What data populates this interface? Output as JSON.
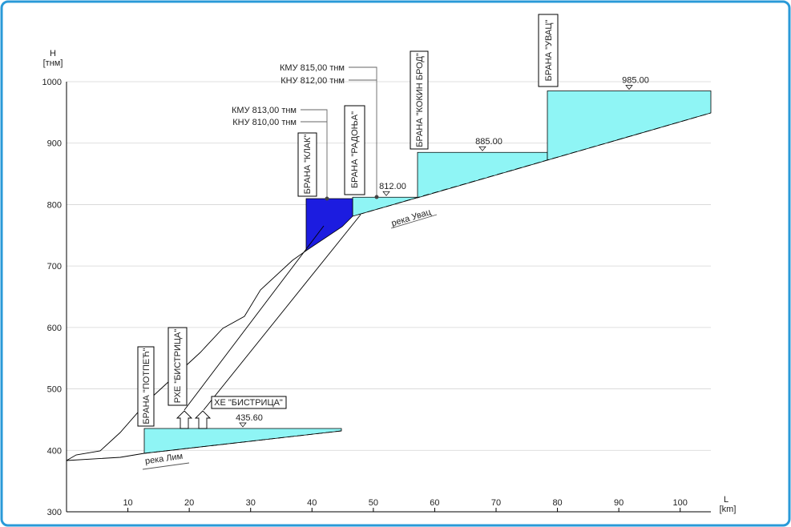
{
  "axes": {
    "x_label": "L",
    "x_unit": "[km]",
    "y_label": "H",
    "y_unit": "[тнм]",
    "xlim": [
      0,
      105
    ],
    "ylim": [
      300,
      1000
    ],
    "xticks": [
      10,
      20,
      30,
      40,
      50,
      60,
      70,
      80,
      90,
      100
    ],
    "yticks": [
      300,
      400,
      500,
      600,
      700,
      800,
      900,
      1000
    ]
  },
  "structures": [
    "БРАНА \"ПОТПЕЋ\"",
    "РХЕ \"БИСТРИЦА\"",
    "ХЕ \"БИСТРИЦА\"",
    "БРАНА \"КЛАК\"",
    "БРАНА \"РАДОЊА\"",
    "БРАНА \"КОКИН БРОД\"",
    "БРАНА \"УВАЦ\""
  ],
  "water_levels": [
    {
      "value": 435.6,
      "label": "435.60"
    },
    {
      "value": 812,
      "label": "812.00"
    },
    {
      "value": 885,
      "label": "885.00"
    },
    {
      "value": 985,
      "label": "985.00"
    }
  ],
  "annotations": [
    "КМУ 815,00 тнм",
    "КНУ 812,00 тнм",
    "КМУ 813,00 тнм",
    "КНУ 810,00 тнм"
  ],
  "rivers": [
    "река Увац",
    "река Лим"
  ]
}
